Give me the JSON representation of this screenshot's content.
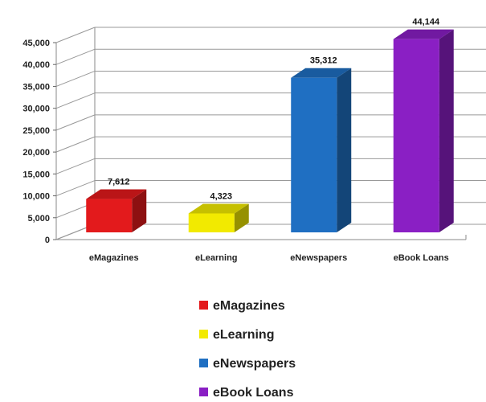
{
  "chart_data": {
    "type": "bar",
    "three_d": true,
    "categories": [
      "eMagazines",
      "eLearning",
      "eNewspapers",
      "eBook Loans"
    ],
    "values": [
      7612,
      4323,
      35312,
      44144
    ],
    "value_labels": [
      "7,612",
      "4,323",
      "35,312",
      "44,144"
    ],
    "colors": [
      "#e31a1c",
      "#f2ea00",
      "#1f6fc2",
      "#8a1fc4"
    ],
    "ylim": [
      0,
      45000
    ],
    "y_ticks": [
      0,
      5000,
      10000,
      15000,
      20000,
      25000,
      30000,
      35000,
      40000,
      45000
    ],
    "y_tick_labels": [
      "0",
      "5,000",
      "10,000",
      "15,000",
      "20,000",
      "25,000",
      "30,000",
      "35,000",
      "40,000",
      "45,000"
    ],
    "grid": true,
    "legend": {
      "position": "bottom",
      "entries": [
        "eMagazines",
        "eLearning",
        "eNewspapers",
        "eBook Loans"
      ]
    },
    "title": "",
    "xlabel": "",
    "ylabel": ""
  }
}
